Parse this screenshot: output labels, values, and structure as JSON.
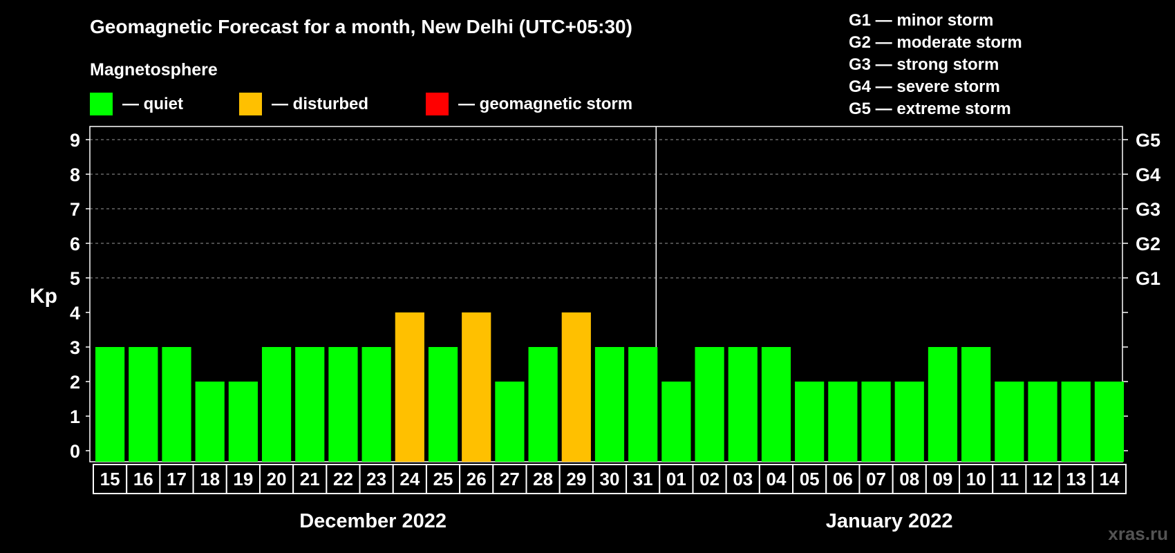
{
  "chart_data": {
    "type": "bar",
    "title": "Geomagnetic Forecast for a month, New Delhi (UTC+05:30)",
    "legend_title": "Magnetosphere",
    "legend": [
      {
        "label": "— quiet",
        "color": "#00ff00",
        "key": "quiet"
      },
      {
        "label": "— disturbed",
        "color": "#ffc000",
        "key": "disturbed"
      },
      {
        "label": "— geomagnetic storm",
        "color": "#ff0000",
        "key": "storm"
      }
    ],
    "storm_scale": [
      "G1 — minor storm",
      "G2 — moderate storm",
      "G3 — strong storm",
      "G4 — severe storm",
      "G5 — extreme storm"
    ],
    "ylabel": "Kp",
    "ylim": [
      0,
      9
    ],
    "yticks": [
      "0",
      "1",
      "2",
      "3",
      "4",
      "5",
      "6",
      "7",
      "8",
      "9"
    ],
    "right_labels": [
      {
        "value": 5,
        "label": "G1"
      },
      {
        "value": 6,
        "label": "G2"
      },
      {
        "value": 7,
        "label": "G3"
      },
      {
        "value": 8,
        "label": "G4"
      },
      {
        "value": 9,
        "label": "G5"
      }
    ],
    "grid": true,
    "categories": [
      "15",
      "16",
      "17",
      "18",
      "19",
      "20",
      "21",
      "22",
      "23",
      "24",
      "25",
      "26",
      "27",
      "28",
      "29",
      "30",
      "31",
      "01",
      "02",
      "03",
      "04",
      "05",
      "06",
      "07",
      "08",
      "09",
      "10",
      "11",
      "12",
      "13",
      "14"
    ],
    "values": [
      3,
      3,
      3,
      2,
      2,
      3,
      3,
      3,
      3,
      4,
      3,
      4,
      2,
      3,
      4,
      3,
      3,
      2,
      3,
      3,
      3,
      2,
      2,
      2,
      2,
      3,
      3,
      2,
      2,
      2,
      2
    ],
    "status": [
      "quiet",
      "quiet",
      "quiet",
      "quiet",
      "quiet",
      "quiet",
      "quiet",
      "quiet",
      "quiet",
      "disturbed",
      "quiet",
      "disturbed",
      "quiet",
      "quiet",
      "disturbed",
      "quiet",
      "quiet",
      "quiet",
      "quiet",
      "quiet",
      "quiet",
      "quiet",
      "quiet",
      "quiet",
      "quiet",
      "quiet",
      "quiet",
      "quiet",
      "quiet",
      "quiet",
      "quiet"
    ],
    "months": [
      {
        "label": "December 2022",
        "count": 17
      },
      {
        "label": "January 2022",
        "count": 14
      }
    ]
  },
  "watermark": "xras.ru"
}
